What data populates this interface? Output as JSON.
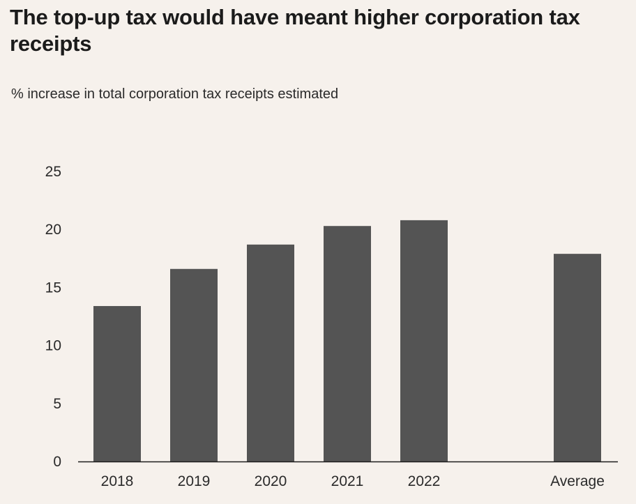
{
  "chart_data": {
    "type": "bar",
    "title": "The top-up tax would have meant higher corporation tax receipts",
    "subtitle": "% increase in total corporation tax receipts estimated",
    "categories": [
      "2018",
      "2019",
      "2020",
      "2021",
      "2022",
      "Average"
    ],
    "values": [
      13.4,
      16.6,
      18.7,
      20.3,
      20.8,
      17.9
    ],
    "yticks": [
      0,
      5,
      10,
      15,
      20,
      25
    ],
    "ylim": [
      0,
      25
    ],
    "xlabel": "",
    "ylabel": "",
    "grid": false,
    "bar_color": "#545454",
    "axis_color": "#1c1c1c"
  }
}
